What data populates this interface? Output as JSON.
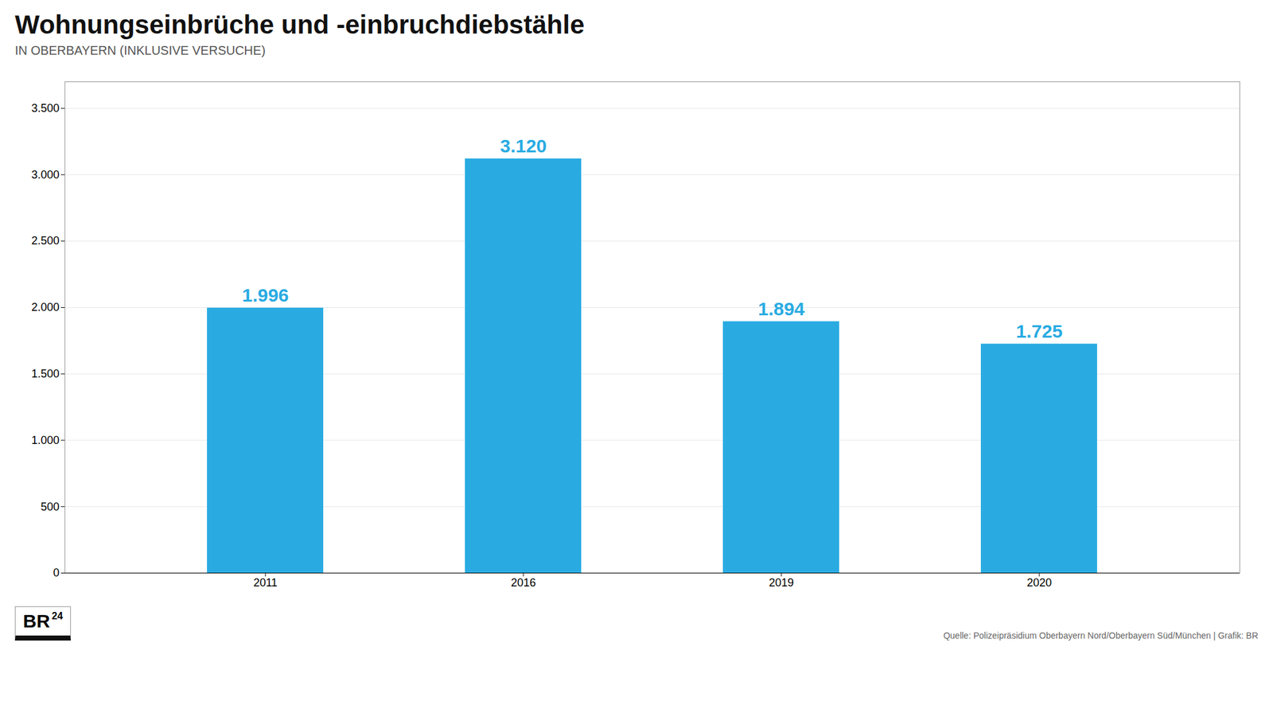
{
  "chart_data": {
    "type": "bar",
    "title": "Wohnungseinbrüche und -einbruchdiebstähle",
    "subtitle": "IN OBERBAYERN (INKLUSIVE VERSUCHE)",
    "categories": [
      "2011",
      "2016",
      "2019",
      "2020"
    ],
    "values": [
      1996,
      3120,
      1894,
      1725
    ],
    "value_labels": [
      "1.996",
      "3.120",
      "1.894",
      "1.725"
    ],
    "data_labels": true,
    "color": "#29ABE2",
    "ylim": [
      0,
      3700
    ],
    "yticks": [
      0,
      500,
      {
        "value": 1000,
        "label": "1.000"
      },
      {
        "value": 1500,
        "label": "1.500"
      },
      {
        "value": 2000,
        "label": "2.000"
      },
      {
        "value": 2500,
        "label": "2.500"
      },
      {
        "value": 3000,
        "label": "3.000"
      },
      {
        "value": 3500,
        "label": "3.500"
      }
    ],
    "grid": true,
    "source": "Quelle: Polizeipräsidium Oberbayern Nord/Oberbayern Süd/München | Grafik: BR",
    "annotations": [
      "BR",
      "24"
    ]
  }
}
